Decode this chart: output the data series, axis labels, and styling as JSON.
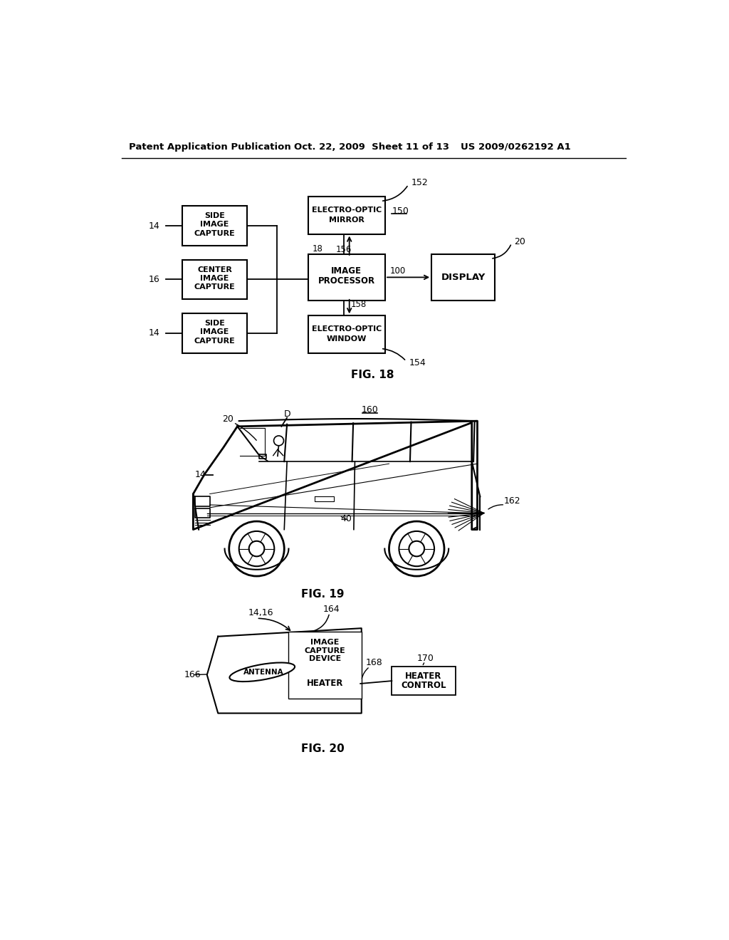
{
  "bg_color": "#ffffff",
  "header_left": "Patent Application Publication",
  "header_mid": "Oct. 22, 2009  Sheet 11 of 13",
  "header_right": "US 2009/0262192 A1"
}
